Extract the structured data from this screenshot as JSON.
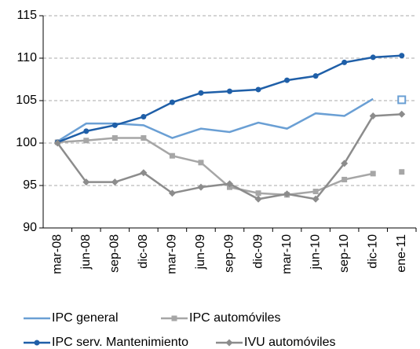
{
  "chart_data": {
    "type": "line",
    "categories": [
      "mar-08",
      "jun-08",
      "sep-08",
      "dic-08",
      "mar-09",
      "jun-09",
      "sep-09",
      "dic-09",
      "mar-10",
      "jun-10",
      "sep-10",
      "dic-10",
      "ene-11"
    ],
    "series": [
      {
        "name": "IPC general",
        "color": "#6a9fd4",
        "marker": "none",
        "values": [
          100.2,
          102.3,
          102.3,
          102.1,
          100.6,
          101.7,
          101.3,
          102.4,
          101.7,
          103.5,
          103.2,
          105.2,
          null
        ]
      },
      {
        "name": "IPC automóviles",
        "color": "#a6a6a6",
        "marker": "square",
        "values": [
          100.1,
          100.3,
          100.6,
          100.6,
          98.5,
          97.7,
          94.8,
          94.1,
          93.9,
          94.3,
          95.7,
          96.4,
          null
        ]
      },
      {
        "color": "#6a9fd4",
        "marker": "square-open",
        "values": [
          null,
          null,
          null,
          null,
          null,
          null,
          null,
          null,
          null,
          null,
          null,
          null,
          105.1
        ]
      },
      {
        "color": "#a6a6a6",
        "marker": "square",
        "values": [
          null,
          null,
          null,
          null,
          null,
          null,
          null,
          null,
          null,
          null,
          null,
          null,
          96.6
        ]
      },
      {
        "name": "IPC serv. Mantenimiento",
        "color": "#1f5fa8",
        "marker": "circle",
        "values": [
          100.1,
          101.4,
          102.1,
          103.1,
          104.8,
          105.9,
          106.1,
          106.3,
          107.4,
          107.9,
          109.5,
          110.1,
          110.3
        ]
      },
      {
        "name": "IVU automóviles",
        "color": "#8c8c8c",
        "marker": "diamond",
        "values": [
          100.0,
          95.4,
          95.4,
          96.5,
          94.1,
          94.8,
          95.2,
          93.4,
          94.0,
          93.4,
          97.6,
          103.2,
          103.4
        ]
      }
    ],
    "ylim": [
      90,
      115
    ],
    "yticks": [
      90,
      95,
      100,
      105,
      110,
      115
    ],
    "grid": true
  }
}
